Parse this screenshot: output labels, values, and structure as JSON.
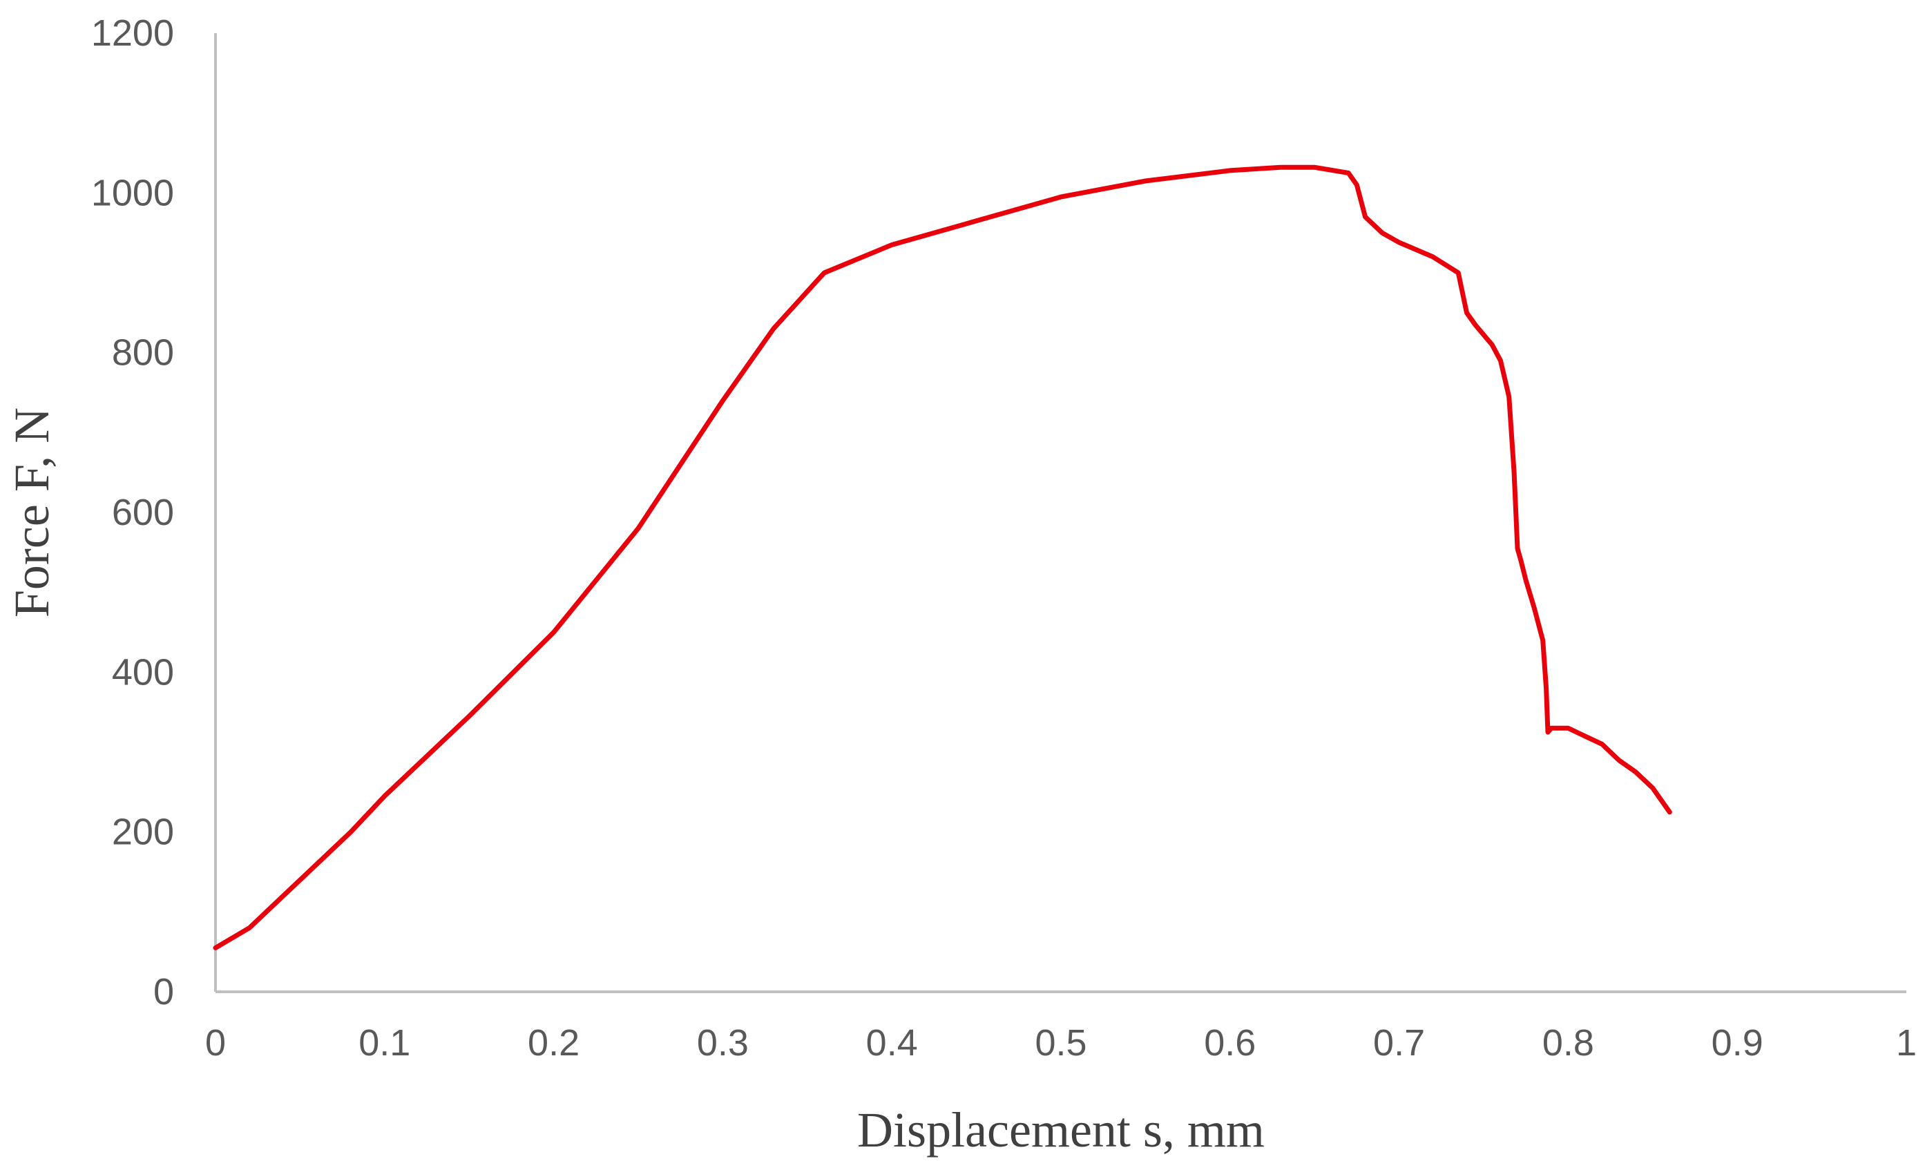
{
  "chart_data": {
    "type": "line",
    "title": "",
    "xlabel": "Displacement s, mm",
    "ylabel": "Force F, N",
    "xlim": [
      0,
      1
    ],
    "ylim": [
      0,
      1200
    ],
    "xticks": [
      0,
      0.1,
      0.2,
      0.3,
      0.4,
      0.5,
      0.6,
      0.7,
      0.8,
      0.9,
      1
    ],
    "xtick_labels": [
      "0",
      "0.1",
      "0.2",
      "0.3",
      "0.4",
      "0.5",
      "0.6",
      "0.7",
      "0.8",
      "0.9",
      "1"
    ],
    "yticks": [
      0,
      200,
      400,
      600,
      800,
      1000,
      1200
    ],
    "ytick_labels": [
      "0",
      "200",
      "400",
      "600",
      "800",
      "1000",
      "1200"
    ],
    "grid": false,
    "legend": "none",
    "colors": {
      "series": "#e8000b",
      "axis": "#bfbfbf",
      "text": "#595959"
    },
    "series": [
      {
        "x": [
          0,
          0.02,
          0.05,
          0.08,
          0.1,
          0.15,
          0.2,
          0.25,
          0.3,
          0.33,
          0.36,
          0.4,
          0.45,
          0.5,
          0.55,
          0.6,
          0.63,
          0.65,
          0.67,
          0.675,
          0.68,
          0.69,
          0.7,
          0.72,
          0.735,
          0.738,
          0.74,
          0.745,
          0.755,
          0.76,
          0.765,
          0.768,
          0.77,
          0.772,
          0.775,
          0.78,
          0.785,
          0.787,
          0.788,
          0.79,
          0.795,
          0.8,
          0.81,
          0.82,
          0.83,
          0.84,
          0.85,
          0.855,
          0.86
        ],
        "y": [
          55,
          80,
          140,
          200,
          245,
          345,
          450,
          580,
          740,
          830,
          900,
          935,
          965,
          995,
          1015,
          1028,
          1032,
          1032,
          1025,
          1010,
          970,
          950,
          938,
          920,
          900,
          870,
          850,
          835,
          810,
          790,
          745,
          650,
          555,
          540,
          515,
          480,
          440,
          380,
          325,
          330,
          330,
          330,
          320,
          310,
          290,
          275,
          255,
          240,
          225
        ]
      }
    ]
  }
}
